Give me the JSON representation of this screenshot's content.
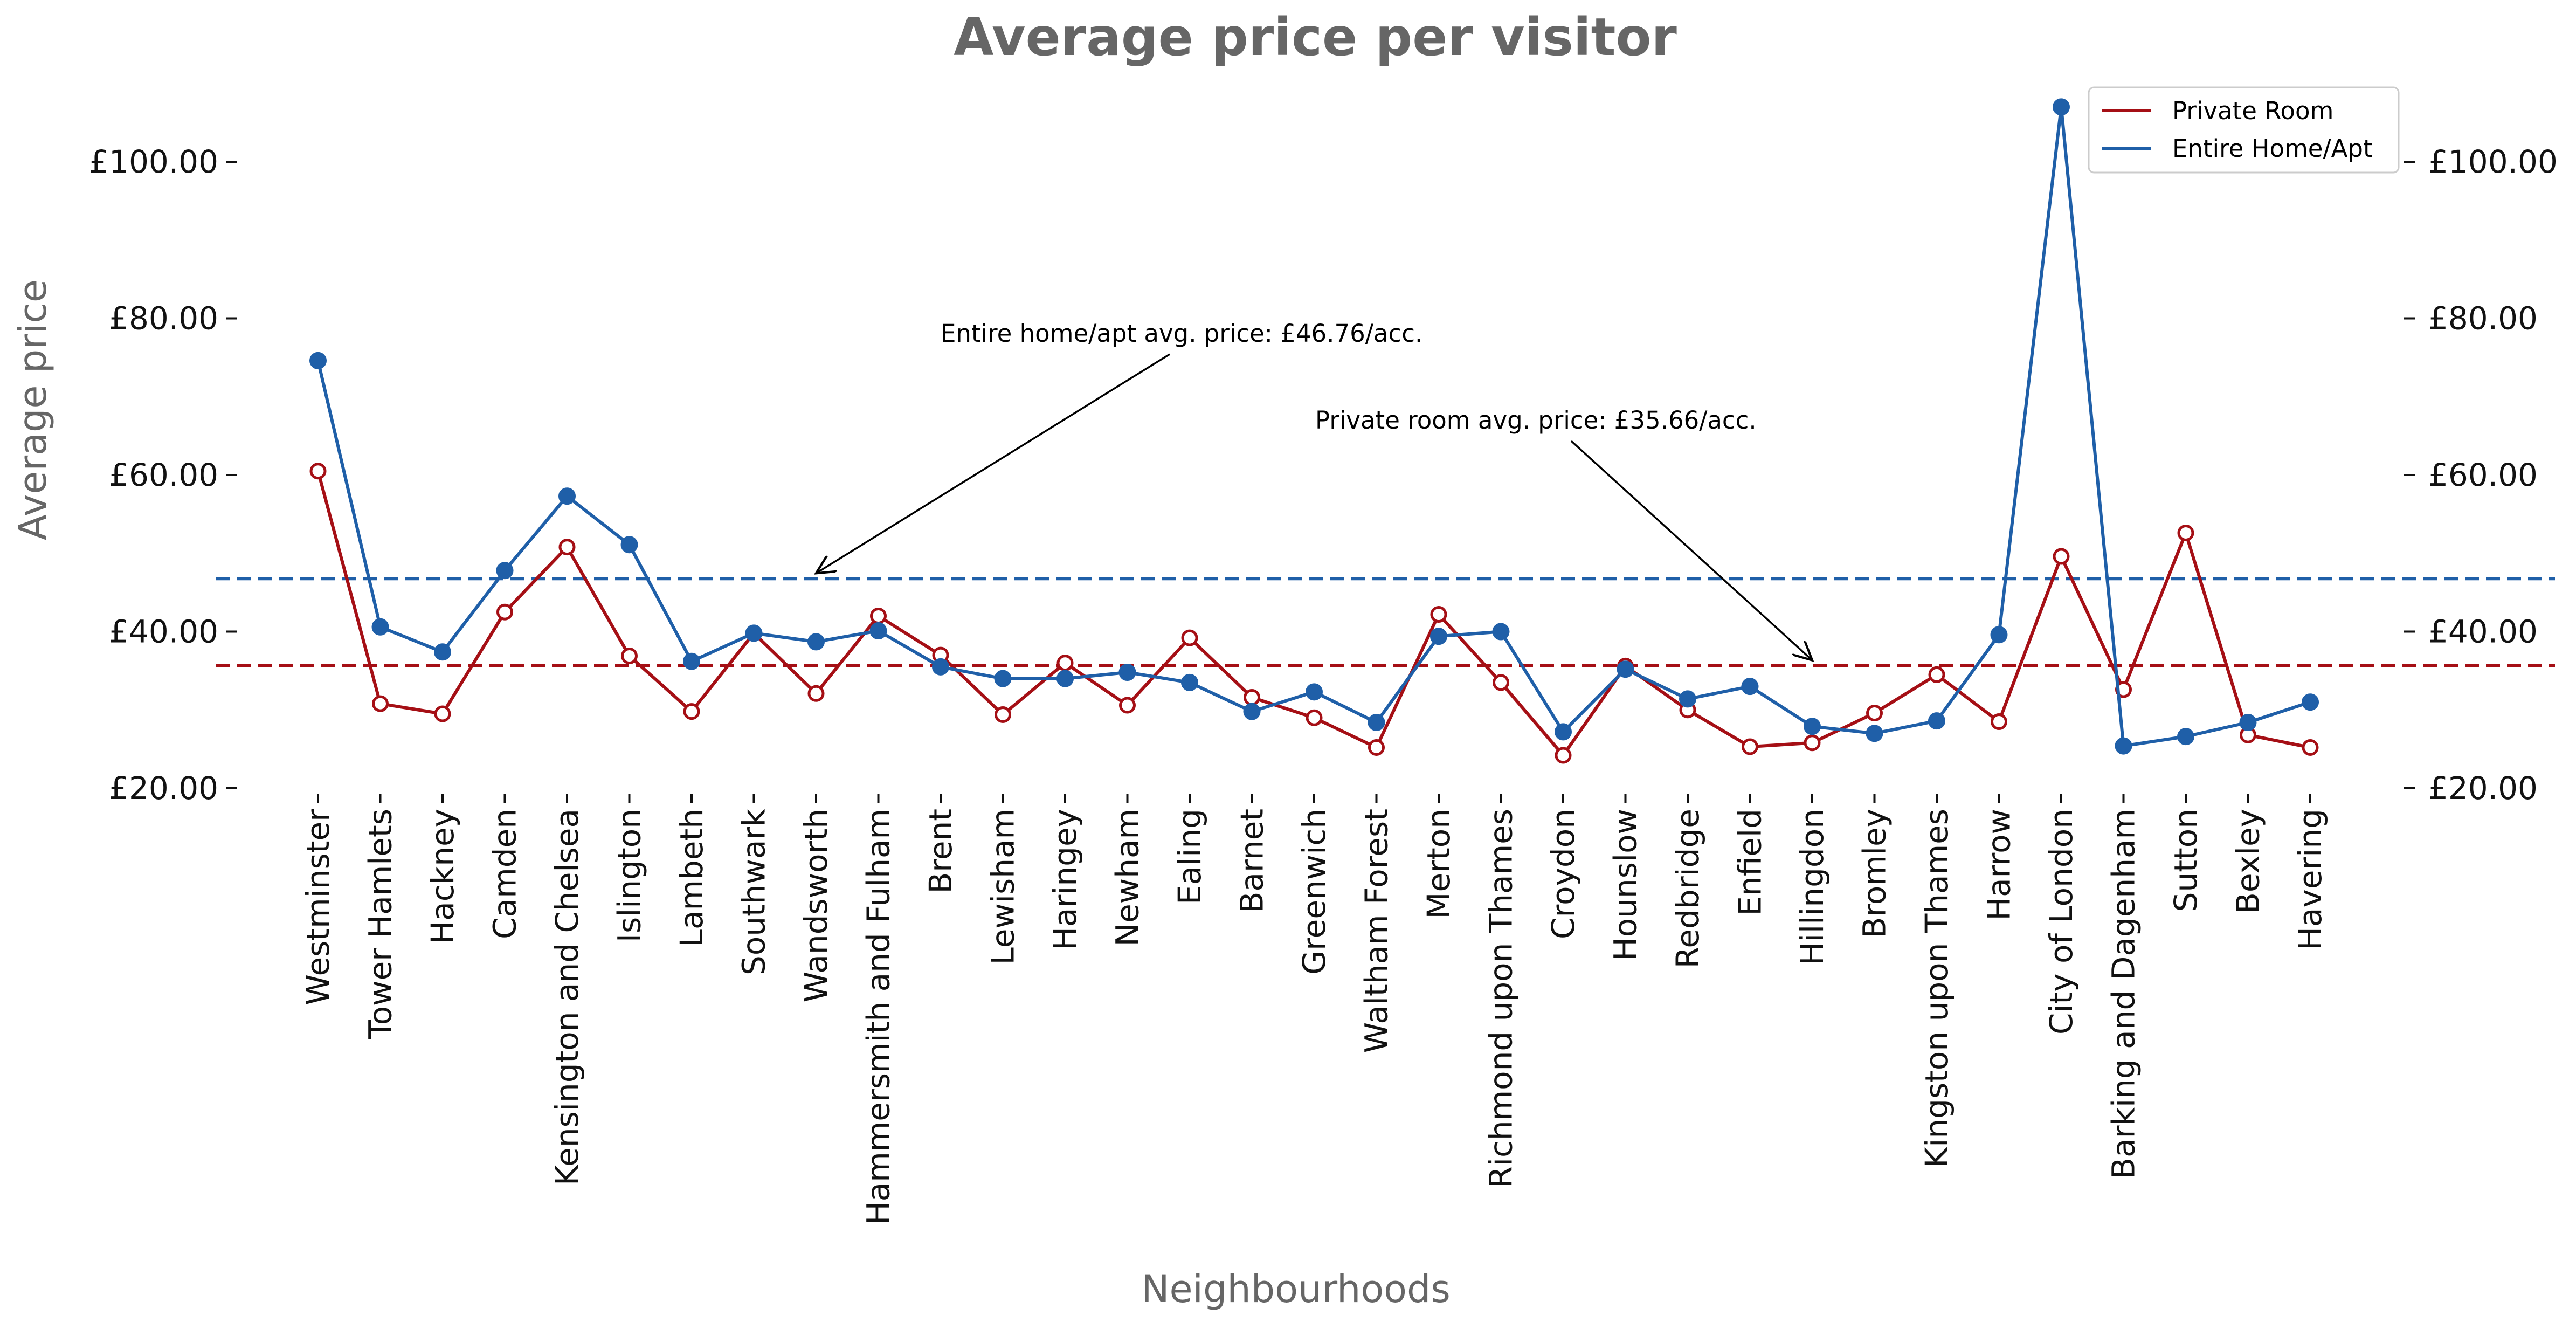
{
  "chart_data": {
    "type": "line",
    "title": "Average price per visitor",
    "xlabel": "Neighbourhoods",
    "ylabel": "Average price",
    "ylim": [
      20,
      110
    ],
    "yticks": [
      20,
      40,
      60,
      80,
      100
    ],
    "ytick_labels": [
      "£20.00",
      "£40.00",
      "£60.00",
      "£80.00",
      "£100.00"
    ],
    "categories": [
      "Westminster",
      "Tower Hamlets",
      "Hackney",
      "Camden",
      "Kensington and Chelsea",
      "Islington",
      "Lambeth",
      "Southwark",
      "Wandsworth",
      "Hammersmith and Fulham",
      "Brent",
      "Lewisham",
      "Haringey",
      "Newham",
      "Ealing",
      "Barnet",
      "Greenwich",
      "Waltham Forest",
      "Merton",
      "Richmond upon Thames",
      "Croydon",
      "Hounslow",
      "Redbridge",
      "Enfield",
      "Hillingdon",
      "Bromley",
      "Kingston upon Thames",
      "Harrow",
      "City of London",
      "Barking and Dagenham",
      "Sutton",
      "Bexley",
      "Havering"
    ],
    "series": [
      {
        "name": "Private Room",
        "color": "#a50f15",
        "marker": "open-circle",
        "values": [
          60.5,
          30.8,
          29.5,
          42.5,
          50.8,
          36.9,
          29.8,
          39.8,
          32.1,
          42.0,
          37.0,
          29.4,
          36.0,
          30.6,
          39.2,
          31.6,
          29.0,
          25.2,
          42.2,
          33.5,
          24.2,
          35.6,
          30.0,
          25.3,
          25.8,
          29.6,
          34.5,
          28.5,
          49.6,
          32.6,
          52.6,
          26.8,
          25.2
        ]
      },
      {
        "name": "Entire Home/Apt",
        "color": "#1f5fa8",
        "marker": "filled-circle",
        "values": [
          74.6,
          40.6,
          37.4,
          47.8,
          57.3,
          51.1,
          36.2,
          39.8,
          38.7,
          40.1,
          35.5,
          34.0,
          34.0,
          34.8,
          33.5,
          29.8,
          32.3,
          28.4,
          39.4,
          40.0,
          27.2,
          35.2,
          31.4,
          33.0,
          27.9,
          27.0,
          28.6,
          39.6,
          107.0,
          25.4,
          26.6,
          28.4,
          31.0
        ]
      }
    ],
    "reference_lines": [
      {
        "name": "Entire home/apt avg",
        "value": 46.76,
        "color": "#1f5fa8",
        "style": "dashed"
      },
      {
        "name": "Private room avg",
        "value": 35.66,
        "color": "#a50f15",
        "style": "dashed"
      }
    ],
    "annotations": [
      {
        "text": "Entire home/apt avg. price: £46.76/acc.",
        "points_to_category": "Wandsworth",
        "points_to_value": 46.76
      },
      {
        "text": "Private room avg. price: £35.66/acc.",
        "points_to_category": "Hillingdon",
        "points_to_value": 35.66
      }
    ],
    "legend_position": "top-right",
    "grid": false,
    "secondary_y_axis": true
  }
}
